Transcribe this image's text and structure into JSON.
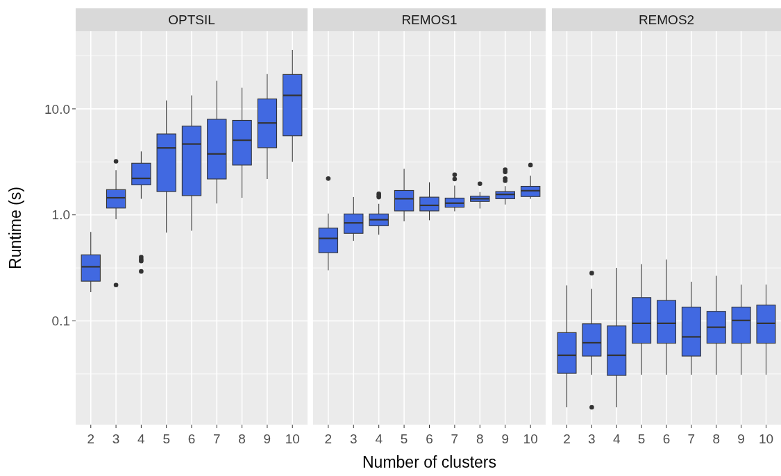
{
  "chart_data": [
    {
      "type": "box",
      "title": "OPTSIL",
      "ylabel": "Runtime (s)",
      "log": true,
      "grid": true,
      "color": "#4169e1",
      "ylim": [
        0.0105,
        54
      ],
      "yticks": [
        {
          "value": 0.0316,
          "label": null
        },
        {
          "value": 0.1,
          "label": "0.1"
        },
        {
          "value": 0.316,
          "label": null
        },
        {
          "value": 1,
          "label": "1.0"
        },
        {
          "value": 3.16,
          "label": null
        },
        {
          "value": 10,
          "label": "10.0"
        },
        {
          "value": 31.6,
          "label": null
        }
      ],
      "categories": [
        "2",
        "3",
        "4",
        "5",
        "6",
        "7",
        "8",
        "9",
        "10"
      ],
      "boxes": [
        {
          "low": 0.187,
          "q1": 0.237,
          "median": 0.324,
          "q3": 0.42,
          "high": 0.69
        },
        {
          "low": 0.91,
          "q1": 1.16,
          "median": 1.45,
          "q3": 1.73,
          "high": 2.64,
          "outliers": [
            3.2,
            0.218
          ]
        },
        {
          "low": 1.42,
          "q1": 1.92,
          "median": 2.21,
          "q3": 3.07,
          "high": 3.96,
          "outliers": [
            0.4,
            0.38,
            0.367,
            0.293
          ]
        },
        {
          "low": 0.68,
          "q1": 1.66,
          "median": 4.28,
          "q3": 5.8,
          "high": 12.0
        },
        {
          "low": 0.71,
          "q1": 1.52,
          "median": 4.66,
          "q3": 6.87,
          "high": 13.4
        },
        {
          "low": 1.28,
          "q1": 2.18,
          "median": 3.76,
          "q3": 7.98,
          "high": 18.4
        },
        {
          "low": 1.45,
          "q1": 2.95,
          "median": 5.06,
          "q3": 7.79,
          "high": 15.8
        },
        {
          "low": 2.18,
          "q1": 4.3,
          "median": 7.36,
          "q3": 12.4,
          "high": 21.3
        },
        {
          "low": 3.18,
          "q1": 5.57,
          "median": 13.4,
          "q3": 21.1,
          "high": 35.9
        }
      ]
    },
    {
      "type": "box",
      "title": "REMOS1",
      "xlabel": "Number of clusters",
      "log": true,
      "grid": true,
      "color": "#4169e1",
      "tick_labels": "x",
      "ylim": [
        0.0105,
        54
      ],
      "categories": [
        "2",
        "3",
        "4",
        "5",
        "6",
        "7",
        "8",
        "9",
        "10"
      ],
      "boxes": [
        {
          "low": 0.3,
          "q1": 0.44,
          "median": 0.6,
          "q3": 0.75,
          "high": 1.03,
          "outliers": [
            2.2
          ]
        },
        {
          "low": 0.57,
          "q1": 0.67,
          "median": 0.84,
          "q3": 1.02,
          "high": 1.47
        },
        {
          "low": 0.65,
          "q1": 0.79,
          "median": 0.9,
          "q3": 1.02,
          "high": 1.27,
          "outliers": [
            1.58,
            1.52,
            1.47
          ]
        },
        {
          "low": 0.87,
          "q1": 1.09,
          "median": 1.42,
          "q3": 1.7,
          "high": 2.72
        },
        {
          "low": 0.89,
          "q1": 1.09,
          "median": 1.23,
          "q3": 1.47,
          "high": 2.03
        },
        {
          "low": 1.08,
          "q1": 1.18,
          "median": 1.29,
          "q3": 1.44,
          "high": 1.89,
          "outliers": [
            2.39,
            2.18
          ]
        },
        {
          "low": 1.15,
          "q1": 1.34,
          "median": 1.42,
          "q3": 1.5,
          "high": 1.64,
          "outliers": [
            1.97
          ]
        },
        {
          "low": 1.25,
          "q1": 1.42,
          "median": 1.56,
          "q3": 1.66,
          "high": 1.87,
          "outliers": [
            2.67,
            2.54,
            2.2,
            2.1
          ]
        },
        {
          "low": 1.42,
          "q1": 1.49,
          "median": 1.69,
          "q3": 1.86,
          "high": 2.34,
          "outliers": [
            2.95
          ]
        }
      ]
    },
    {
      "type": "box",
      "title": "REMOS2",
      "log": true,
      "grid": true,
      "color": "#4169e1",
      "tick_labels": "x",
      "ylim": [
        0.0105,
        54
      ],
      "categories": [
        "2",
        "3",
        "4",
        "5",
        "6",
        "7",
        "8",
        "9",
        "10"
      ],
      "boxes": [
        {
          "low": 0.0153,
          "q1": 0.032,
          "median": 0.0474,
          "q3": 0.0775,
          "high": 0.216
        },
        {
          "low": 0.0311,
          "q1": 0.0466,
          "median": 0.0622,
          "q3": 0.0938,
          "high": 0.201,
          "outliers": [
            0.282,
            0.0153
          ]
        },
        {
          "low": 0.0153,
          "q1": 0.0306,
          "median": 0.0474,
          "q3": 0.0896,
          "high": 0.316
        },
        {
          "low": 0.0311,
          "q1": 0.0615,
          "median": 0.0949,
          "q3": 0.166,
          "high": 0.343
        },
        {
          "low": 0.0311,
          "q1": 0.0615,
          "median": 0.0949,
          "q3": 0.156,
          "high": 0.38
        },
        {
          "low": 0.0311,
          "q1": 0.0466,
          "median": 0.0707,
          "q3": 0.135,
          "high": 0.234
        },
        {
          "low": 0.0311,
          "q1": 0.0615,
          "median": 0.0871,
          "q3": 0.123,
          "high": 0.266
        },
        {
          "low": 0.0311,
          "q1": 0.0615,
          "median": 0.101,
          "q3": 0.135,
          "high": 0.22
        },
        {
          "low": 0.0311,
          "q1": 0.0615,
          "median": 0.0949,
          "q3": 0.141,
          "high": 0.22
        }
      ]
    }
  ]
}
